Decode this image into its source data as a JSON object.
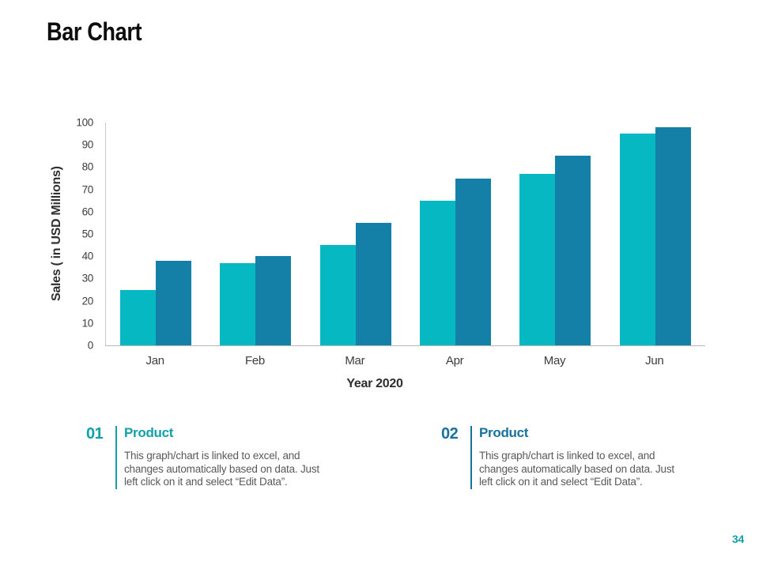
{
  "slide": {
    "title": "Bar Chart",
    "page_number": "34",
    "page_number_color": "#12a0aa"
  },
  "chart_data": {
    "type": "bar",
    "title": "",
    "categories": [
      "Jan",
      "Feb",
      "Mar",
      "Apr",
      "May",
      "Jun"
    ],
    "series": [
      {
        "name": "series-1",
        "color": "#06b8c2",
        "values": [
          25,
          37,
          45,
          65,
          77,
          95
        ]
      },
      {
        "name": "series-2",
        "color": "#1480a8",
        "values": [
          38,
          40,
          55,
          75,
          85,
          98
        ]
      }
    ],
    "xlabel": "Year 2020",
    "ylabel": "Sales  ( in USD Millions)",
    "ylim": [
      0,
      100
    ],
    "ytick_step": 10,
    "grid": false,
    "legend": "none"
  },
  "callouts": [
    {
      "number": "01",
      "heading": "Product",
      "accent": "#12a0aa",
      "lines": [
        "This graph/chart is linked to excel, and",
        "changes automatically based on data. Just",
        "left click on it and select “Edit Data”."
      ]
    },
    {
      "number": "02",
      "heading": "Product",
      "accent": "#17719b",
      "lines": [
        "This graph/chart is linked to excel, and",
        "changes automatically based on data. Just",
        "left click on it and select “Edit Data”."
      ]
    }
  ]
}
